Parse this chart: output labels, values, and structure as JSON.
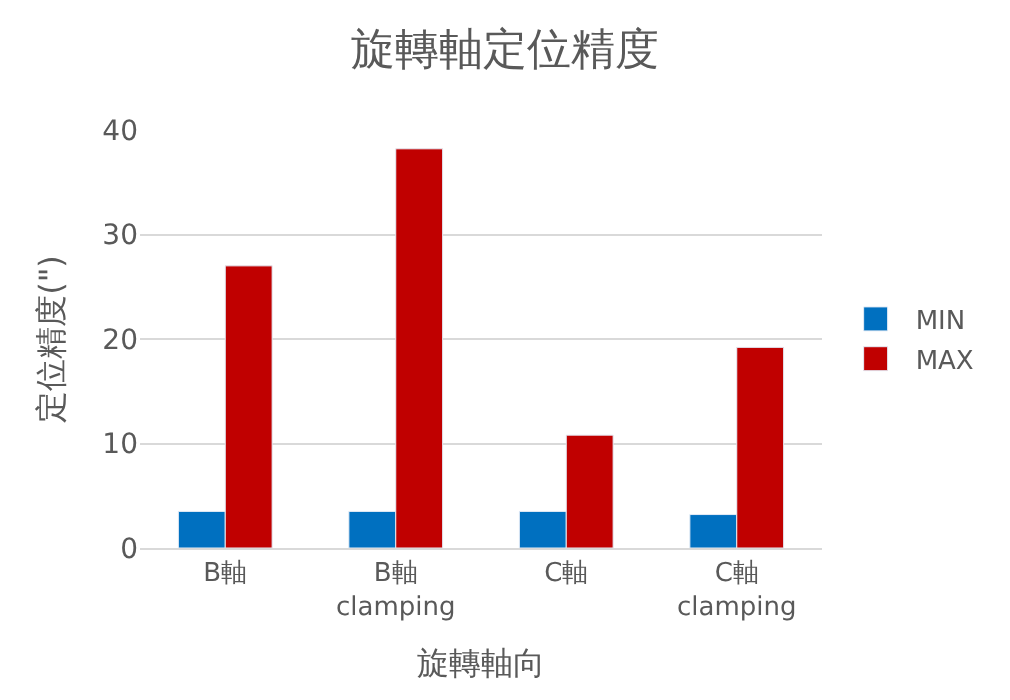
{
  "chart_data": {
    "type": "bar",
    "title": "旋轉軸定位精度",
    "xlabel": "旋轉軸向",
    "ylabel": "定位精度(\")",
    "categories": [
      "B軸",
      "B軸\nclamping",
      "C軸",
      "C軸\nclamping"
    ],
    "series": [
      {
        "name": "MIN",
        "color": "#0070c0",
        "values": [
          3.5,
          3.5,
          3.5,
          3.2
        ]
      },
      {
        "name": "MAX",
        "color": "#c00000",
        "values": [
          27.0,
          38.2,
          10.8,
          19.2
        ]
      }
    ],
    "ylim": [
      0,
      40
    ],
    "yticks": [
      0,
      10,
      20,
      30,
      40
    ],
    "grid": "y",
    "legend": "right"
  }
}
